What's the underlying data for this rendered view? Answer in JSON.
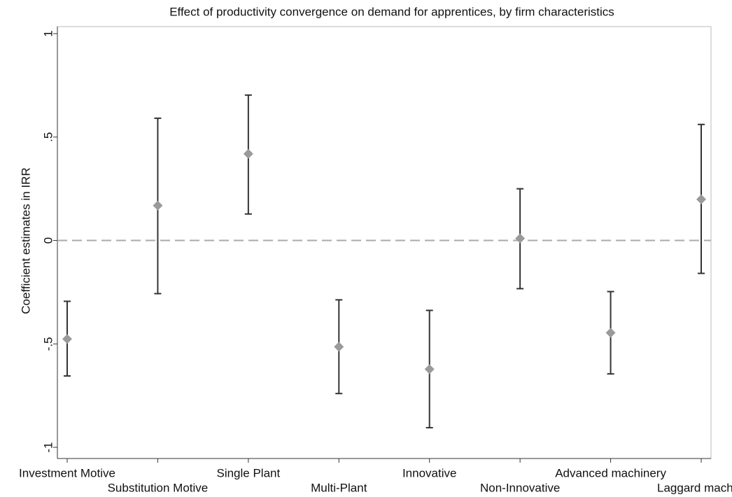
{
  "chart_data": {
    "type": "errorbar",
    "title": "Effect of productivity convergence on demand for apprentices, by firm characteristics",
    "y_label": "Coefficient estimates in IRR",
    "categories": [
      "Investment Motive",
      "Substitution Motive",
      "Single Plant",
      "Multi-Plant",
      "Innovative",
      "Non-Innovative",
      "Advanced machinery",
      "Laggard mach"
    ],
    "values": [
      -0.476,
      0.169,
      0.419,
      -0.514,
      -0.622,
      0.01,
      -0.446,
      0.199
    ],
    "upper": [
      -0.294,
      0.591,
      0.703,
      -0.287,
      -0.338,
      0.25,
      -0.247,
      0.561
    ],
    "lower": [
      -0.655,
      -0.257,
      0.128,
      -0.74,
      -0.905,
      -0.233,
      -0.645,
      -0.159
    ],
    "color": "#9a9a9a",
    "bar_color": "#333333",
    "reference_line": 0,
    "ylim": [
      -1.054,
      1.034
    ],
    "yticks": [
      -1,
      {
        "value": -0.5,
        "label": "-.5"
      },
      0,
      {
        "value": 0.5,
        "label": ".5"
      },
      1
    ]
  }
}
